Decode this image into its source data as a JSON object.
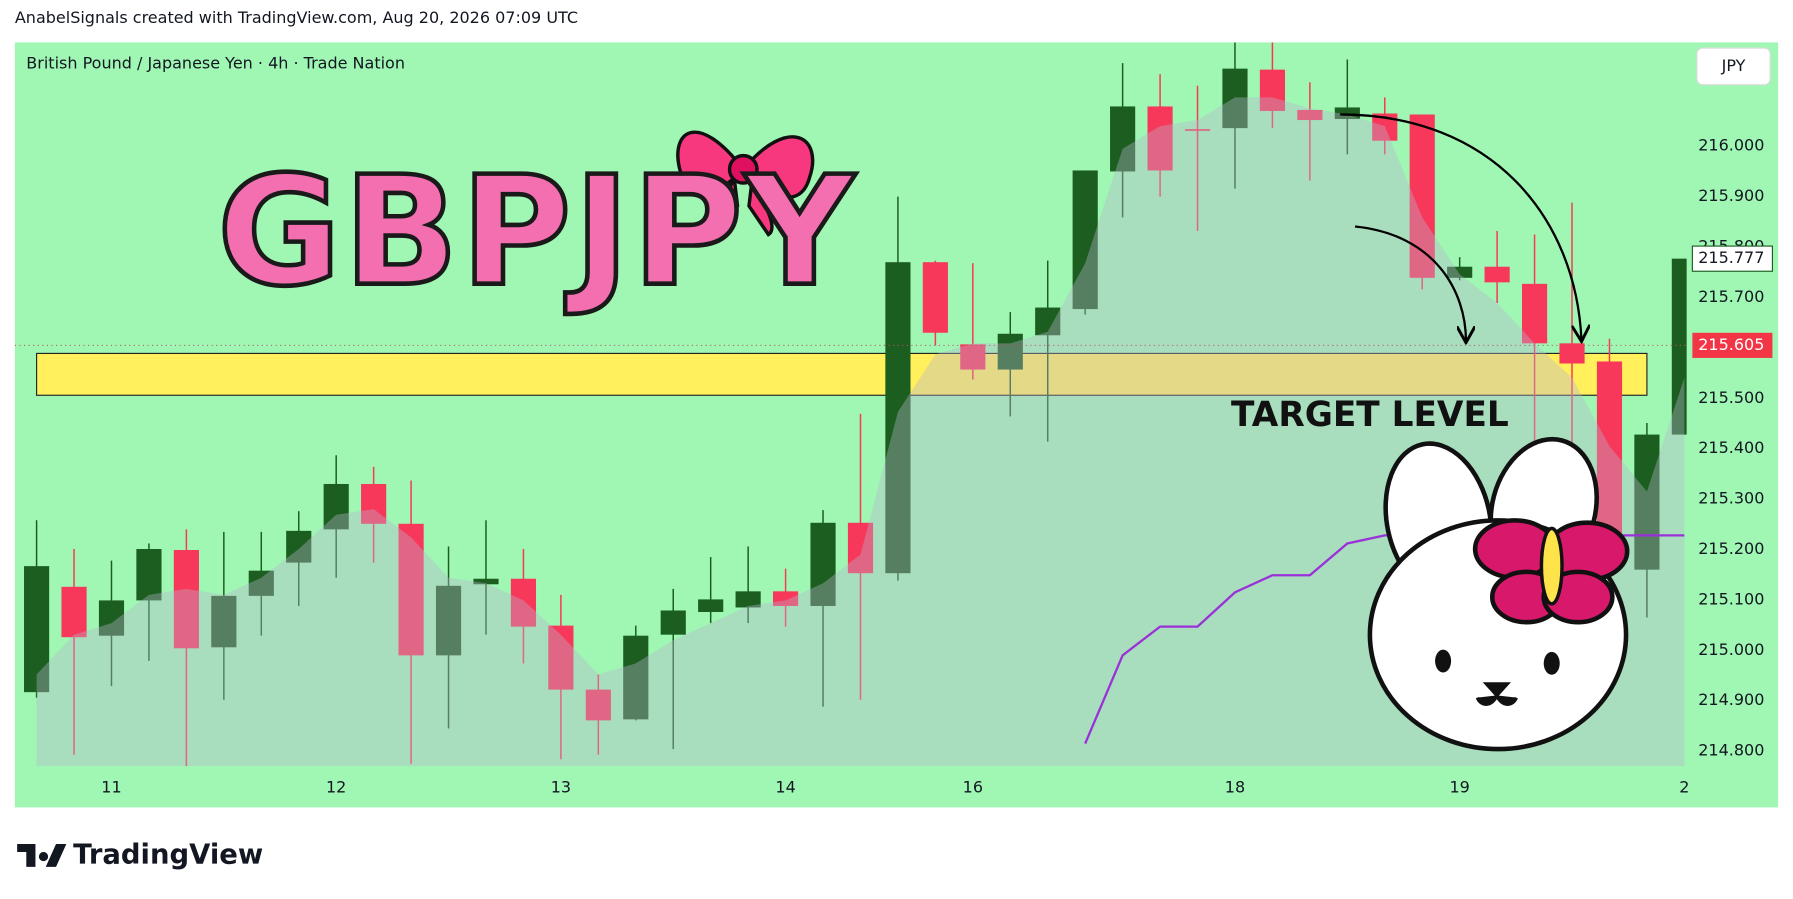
{
  "header": {
    "credit": "AnabelSignals created with TradingView.com, Aug 20, 2026 07:09 UTC",
    "logo": "TradingView"
  },
  "chart_data": {
    "type": "candlestick",
    "title": "British Pound / Japanese Yen · 4h · Trade Nation",
    "currency": "JPY",
    "overlay_title": "GBPJPY",
    "annotation": "TARGET LEVEL",
    "categories": [
      null,
      null,
      "11",
      null,
      null,
      null,
      null,
      null,
      "12",
      null,
      null,
      null,
      null,
      null,
      "13",
      null,
      null,
      null,
      null,
      null,
      "14",
      null,
      null,
      null,
      null,
      "16",
      null,
      null,
      null,
      null,
      null,
      null,
      "18",
      null,
      null,
      null,
      null,
      null,
      "19",
      null,
      null,
      null,
      null,
      null,
      "2"
    ],
    "open": [
      214.917,
      215.126,
      215.029,
      215.099,
      215.199,
      215.006,
      215.108,
      215.174,
      215.24,
      215.33,
      215.251,
      214.99,
      215.131,
      215.142,
      215.049,
      214.922,
      214.863,
      215.031,
      215.076,
      215.085,
      215.117,
      215.088,
      215.253,
      215.153,
      215.77,
      215.607,
      215.557,
      215.625,
      215.677,
      215.95,
      216.079,
      216.034,
      216.036,
      216.152,
      216.072,
      216.054,
      216.065,
      216.063,
      215.739,
      215.761,
      215.727,
      215.609,
      215.573,
      215.16,
      215.428
    ],
    "high": [
      215.258,
      215.201,
      215.178,
      215.212,
      215.24,
      215.235,
      215.235,
      215.276,
      215.387,
      215.364,
      215.337,
      215.206,
      215.258,
      215.201,
      215.11,
      214.952,
      215.049,
      215.122,
      215.185,
      215.206,
      215.162,
      215.278,
      215.469,
      215.9,
      215.773,
      215.768,
      215.671,
      215.773,
      215.952,
      216.165,
      216.143,
      216.12,
      216.206,
      216.206,
      216.127,
      216.172,
      216.097,
      216.063,
      215.78,
      215.832,
      215.825,
      215.888,
      215.618,
      215.451,
      215.777
    ],
    "low": [
      214.906,
      214.793,
      214.929,
      214.979,
      214.77,
      214.902,
      215.029,
      215.088,
      215.144,
      215.174,
      214.775,
      214.845,
      215.031,
      214.974,
      214.784,
      214.793,
      214.861,
      214.804,
      215.054,
      215.054,
      215.047,
      214.888,
      214.902,
      215.138,
      215.605,
      215.537,
      215.464,
      215.414,
      215.666,
      215.859,
      215.9,
      215.832,
      215.916,
      216.036,
      215.932,
      215.984,
      215.984,
      215.716,
      215.734,
      215.689,
      215.383,
      215.337,
      215.124,
      215.065,
      215.428
    ],
    "close": [
      215.167,
      215.026,
      215.099,
      215.201,
      215.004,
      215.108,
      215.158,
      215.237,
      215.33,
      215.251,
      214.99,
      215.128,
      215.142,
      215.047,
      214.922,
      214.861,
      215.029,
      215.079,
      215.101,
      215.117,
      215.088,
      215.253,
      215.153,
      215.77,
      215.63,
      215.557,
      215.628,
      215.68,
      215.952,
      216.079,
      215.952,
      216.031,
      216.154,
      216.07,
      216.052,
      216.077,
      216.011,
      215.739,
      215.761,
      215.73,
      215.609,
      215.569,
      215.228,
      215.428,
      215.777
    ],
    "up_color": "#1b5e20",
    "down_color": "#f7385a",
    "area": {
      "color": "#b8b4cc",
      "values": [
        214.952,
        215.031,
        215.054,
        215.11,
        215.122,
        215.11,
        215.144,
        215.201,
        215.269,
        215.28,
        215.224,
        215.144,
        215.133,
        215.099,
        215.031,
        214.952,
        214.974,
        215.02,
        215.054,
        215.088,
        215.099,
        215.133,
        215.19,
        215.473,
        215.587,
        215.609,
        215.609,
        215.632,
        215.768,
        215.995,
        216.04,
        216.052,
        216.097,
        216.097,
        216.075,
        216.063,
        216.04,
        215.859,
        215.746,
        215.689,
        215.609,
        215.541,
        215.405,
        215.315,
        215.541
      ]
    },
    "line": {
      "color": "#9b30d9",
      "values": [
        null,
        null,
        null,
        null,
        null,
        null,
        null,
        null,
        null,
        null,
        null,
        null,
        null,
        null,
        null,
        null,
        null,
        null,
        null,
        null,
        null,
        null,
        null,
        null,
        null,
        null,
        null,
        null,
        214.815,
        214.99,
        215.047,
        215.047,
        215.115,
        215.149,
        215.149,
        215.212,
        215.228,
        215.228,
        215.228,
        215.228,
        215.228,
        215.228,
        215.228,
        215.228,
        215.228
      ]
    },
    "target_zone": {
      "low": 215.506,
      "high": 215.589,
      "color": "#fff05c"
    },
    "last_price": 215.777,
    "marked_price": 215.605,
    "ylim": [
      214.77,
      216.206
    ],
    "yticks": [
      {
        "value": 214.8,
        "label": "214.800"
      },
      {
        "value": 214.9,
        "label": "214.900"
      },
      {
        "value": 215,
        "label": "215.000"
      },
      {
        "value": 215.1,
        "label": "215.100"
      },
      {
        "value": 215.2,
        "label": "215.200"
      },
      {
        "value": 215.3,
        "label": "215.300"
      },
      {
        "value": 215.4,
        "label": "215.400"
      },
      {
        "value": 215.5,
        "label": "215.500"
      },
      {
        "value": 215.6,
        "label": "215.600"
      },
      {
        "value": 215.7,
        "label": "215.700"
      },
      {
        "value": 215.8,
        "label": "215.800"
      },
      {
        "value": 215.9,
        "label": "215.900"
      },
      {
        "value": 216,
        "label": "216.000"
      }
    ]
  }
}
